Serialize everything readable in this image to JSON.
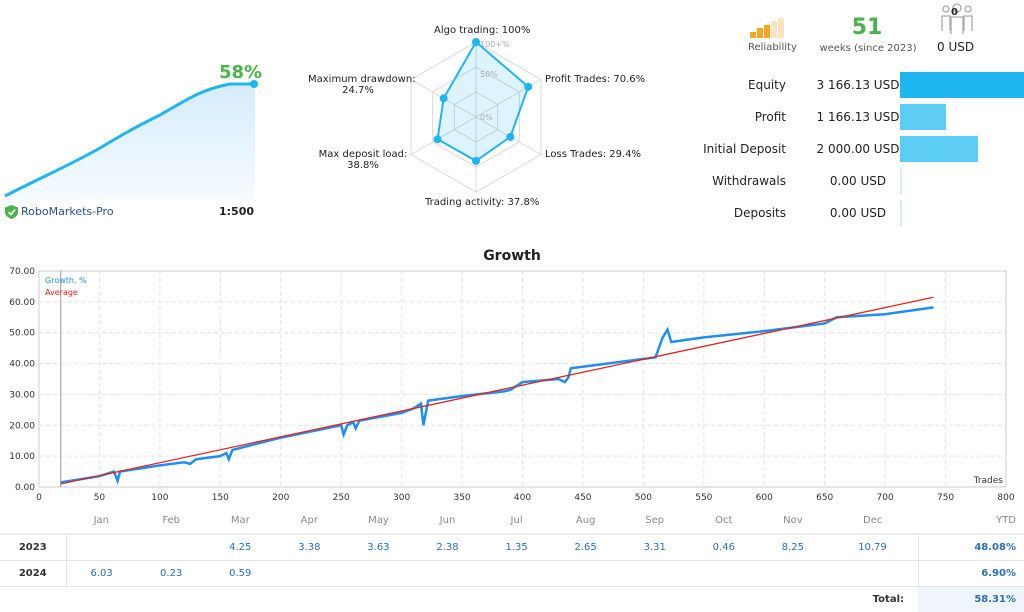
{
  "mini": {
    "growth": "58%",
    "broker": "RoboMarkets-Pro",
    "leverage": "1:500",
    "color": "#1fb5f0"
  },
  "radar": {
    "axes": [
      {
        "label": "Algo trading: 100%",
        "value": 100
      },
      {
        "label": "Profit Trades: 70.6%",
        "value": 70.6
      },
      {
        "label": "Loss Trades: 29.4%",
        "value": 29.4
      },
      {
        "label": "Trading activity: 37.8%",
        "value": 37.8
      },
      {
        "label_1": "Max deposit load:",
        "label_2": "38.8%",
        "value": 38.8
      },
      {
        "label_1": "Maximum drawdown:",
        "label_2": "24.7%",
        "value": 24.7
      }
    ],
    "ticks": [
      "100+%",
      "50%",
      "0%"
    ]
  },
  "header": {
    "reliability": "Reliability",
    "reliability_level": 3,
    "weeks": "51",
    "weeks_label": "weeks (since 2023)",
    "subscribers": "0",
    "subscribers_usd": "0 USD"
  },
  "stats": [
    {
      "label": "Equity",
      "value": "3 166.13 USD",
      "amount": 3166.13,
      "color": "#1fb5f0"
    },
    {
      "label": "Profit",
      "value": "1 166.13 USD",
      "amount": 1166.13,
      "color": "#5ccdf5"
    },
    {
      "label": "Initial Deposit",
      "value": "2 000.00 USD",
      "amount": 2000,
      "color": "#5ccdf5"
    },
    {
      "label": "Withdrawals",
      "value": "0.00 USD",
      "amount": 0,
      "color": "#d4effb"
    },
    {
      "label": "Deposits",
      "value": "0.00 USD",
      "amount": 0,
      "color": "#d4effb"
    }
  ],
  "chart_data": {
    "type": "line",
    "title": "Growth",
    "xlabel": "Trades",
    "xlim": [
      0,
      800
    ],
    "ylim": [
      0,
      70
    ],
    "grid": true,
    "legend": "top-left",
    "xticks": [
      0,
      50,
      100,
      150,
      200,
      250,
      300,
      350,
      400,
      450,
      500,
      550,
      600,
      650,
      700,
      750,
      800
    ],
    "yticks": [
      "0.00",
      "10.00",
      "20.00",
      "30.00",
      "40.00",
      "50.00",
      "60.00",
      "70.00"
    ],
    "series": [
      {
        "name": "Growth, %",
        "color": "#1e8ff0",
        "x": [
          18,
          50,
          62,
          65,
          67,
          100,
          120,
          125,
          130,
          150,
          155,
          157,
          160,
          200,
          250,
          252,
          255,
          260,
          262,
          265,
          300,
          310,
          316,
          318,
          322,
          350,
          385,
          390,
          400,
          430,
          435,
          438,
          440,
          500,
          510,
          516,
          520,
          523,
          550,
          600,
          650,
          660,
          700,
          740
        ],
        "y": [
          1.5,
          3.5,
          5,
          2,
          5,
          7,
          8,
          7.5,
          9,
          10,
          11,
          9,
          12,
          16,
          20,
          17,
          20,
          21,
          19,
          21.5,
          24,
          25.5,
          27,
          20,
          28,
          29.5,
          31,
          31.5,
          34,
          35,
          34,
          35.5,
          38.5,
          41.5,
          42,
          48.5,
          51,
          47,
          48.5,
          50.5,
          53,
          55,
          56,
          58.2
        ]
      },
      {
        "name": "Average",
        "color": "#e5231d",
        "x": [
          18,
          740
        ],
        "y": [
          1,
          61.5
        ]
      }
    ]
  },
  "table": {
    "months": [
      "Jan",
      "Feb",
      "Mar",
      "Apr",
      "May",
      "Jun",
      "Jul",
      "Aug",
      "Sep",
      "Oct",
      "Nov",
      "Dec"
    ],
    "ytd": "YTD",
    "rows": [
      {
        "year": "2023",
        "values": [
          "",
          "",
          "4.25",
          "3.38",
          "3.63",
          "2.38",
          "1.35",
          "2.65",
          "3.31",
          "0.46",
          "8.25",
          "10.79"
        ],
        "ytd": "48.08%"
      },
      {
        "year": "2024",
        "values": [
          "6.03",
          "0.23",
          "0.59",
          "",
          "",
          "",
          "",
          "",
          "",
          "",
          "",
          ""
        ],
        "ytd": "6.90%"
      }
    ],
    "total_label": "Total:",
    "total": "58.31%"
  }
}
